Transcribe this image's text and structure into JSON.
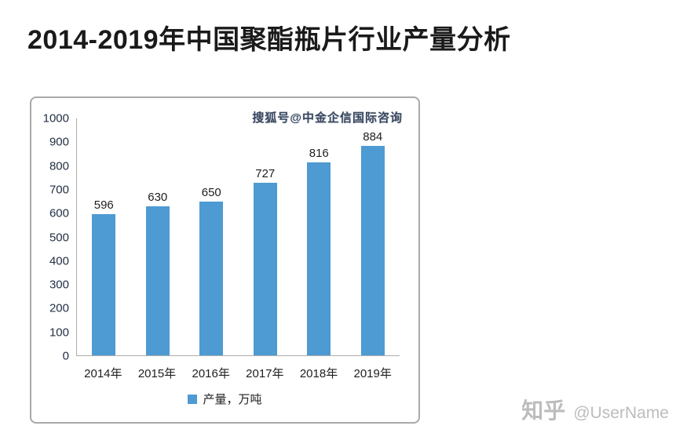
{
  "title": "2014-2019年中国聚酯瓶片行业产量分析",
  "chart_watermark": "搜狐号@中金企信国际咨询",
  "chart_data": {
    "type": "bar",
    "title": "2014-2019年中国聚酯瓶片行业产量分析",
    "categories": [
      "2014年",
      "2015年",
      "2016年",
      "2017年",
      "2018年",
      "2019年"
    ],
    "values": [
      596,
      630,
      650,
      727,
      816,
      884
    ],
    "legend": "产量，万吨",
    "xlabel": "",
    "ylabel": "",
    "ylim": [
      0,
      1000
    ],
    "yticks": [
      0,
      100,
      200,
      300,
      400,
      500,
      600,
      700,
      800,
      900,
      1000
    ],
    "grid": false,
    "legend_position": "bottom",
    "data_labels": true
  },
  "colors": {
    "bar": "#4D9BD2",
    "watermark_gray": "#bcbcbc"
  },
  "footer": {
    "logo": "知乎",
    "username": "@UserName"
  }
}
